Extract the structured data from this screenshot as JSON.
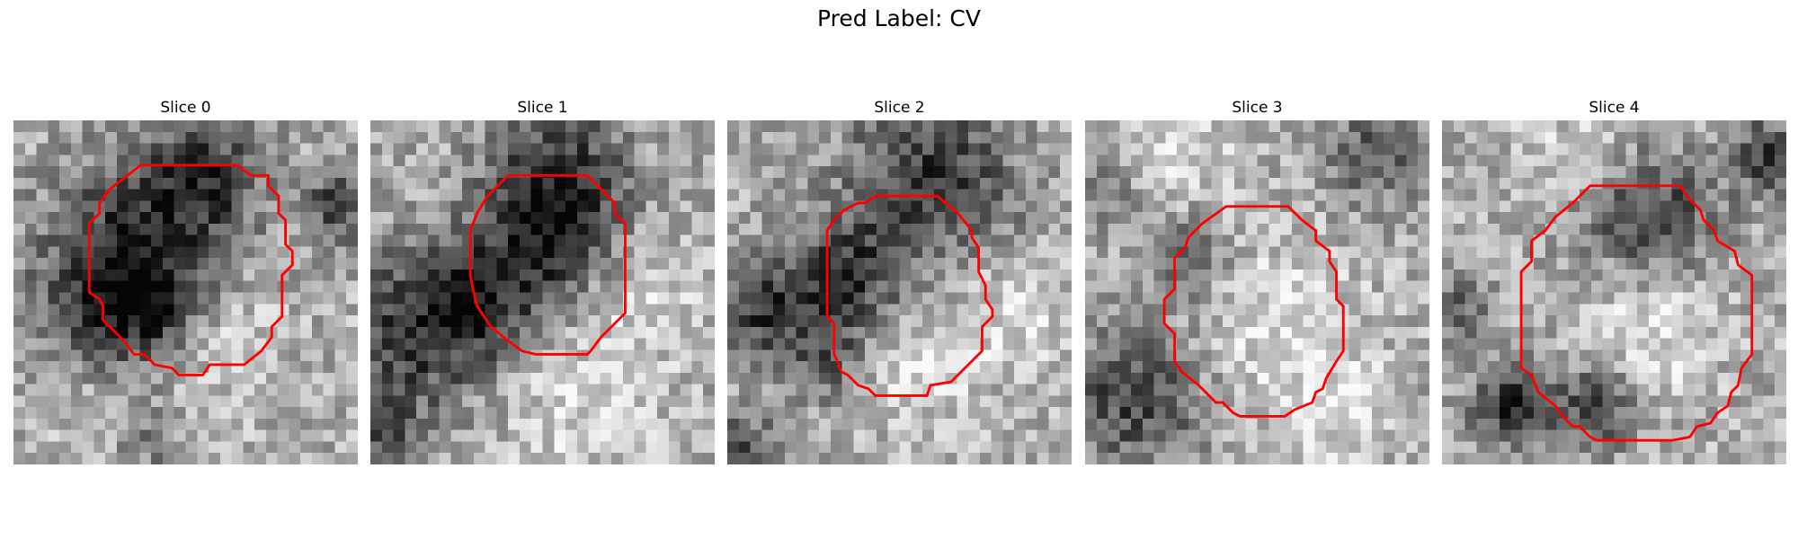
{
  "title": "Pred Label: CV",
  "grid_size": 30,
  "contour_color": "#ff0000",
  "slices": [
    {
      "label": "Slice 0",
      "seed": 11,
      "dark_regions": [
        [
          0.55,
          0.17,
          0.18,
          0.9
        ],
        [
          0.3,
          0.3,
          0.22,
          0.55
        ],
        [
          0.25,
          0.55,
          0.2,
          0.8
        ],
        [
          0.45,
          0.55,
          0.2,
          0.85
        ],
        [
          0.4,
          0.92,
          0.12,
          0.5
        ],
        [
          0.95,
          0.25,
          0.1,
          0.8
        ]
      ],
      "light_regions": [
        [
          0.6,
          0.6,
          0.15,
          0.7
        ],
        [
          0.4,
          0.78,
          0.25,
          0.5
        ]
      ],
      "contour": [
        [
          37,
          13
        ],
        [
          65,
          13
        ],
        [
          69,
          16
        ],
        [
          74,
          16
        ],
        [
          74,
          19
        ],
        [
          77,
          22
        ],
        [
          77,
          27
        ],
        [
          79,
          29
        ],
        [
          79,
          36
        ],
        [
          81,
          38
        ],
        [
          81,
          42
        ],
        [
          78,
          45
        ],
        [
          78,
          57
        ],
        [
          75,
          60
        ],
        [
          75,
          63
        ],
        [
          72,
          67
        ],
        [
          67,
          71
        ],
        [
          57,
          71
        ],
        [
          55,
          74
        ],
        [
          48,
          74
        ],
        [
          46,
          72
        ],
        [
          41,
          71
        ],
        [
          38,
          68
        ],
        [
          35,
          68
        ],
        [
          32,
          64
        ],
        [
          29,
          61
        ],
        [
          26,
          58
        ],
        [
          26,
          54
        ],
        [
          25,
          52
        ],
        [
          22,
          50
        ],
        [
          22,
          30
        ],
        [
          25,
          27
        ],
        [
          25,
          24
        ],
        [
          28,
          20
        ]
      ]
    },
    {
      "label": "Slice 1",
      "seed": 23,
      "dark_regions": [
        [
          0.55,
          0.15,
          0.2,
          0.85
        ],
        [
          0.5,
          0.38,
          0.2,
          0.75
        ],
        [
          0.1,
          0.62,
          0.25,
          0.75
        ],
        [
          0.3,
          0.55,
          0.18,
          0.6
        ],
        [
          0.05,
          0.9,
          0.1,
          0.5
        ]
      ],
      "light_regions": [
        [
          0.6,
          0.8,
          0.25,
          0.5
        ],
        [
          0.8,
          0.5,
          0.15,
          0.5
        ]
      ],
      "contour": [
        [
          40,
          16
        ],
        [
          63,
          16
        ],
        [
          68,
          21
        ],
        [
          71,
          24
        ],
        [
          71,
          27
        ],
        [
          74,
          30
        ],
        [
          74,
          56
        ],
        [
          71,
          59
        ],
        [
          67,
          63
        ],
        [
          64,
          67
        ],
        [
          63,
          68
        ],
        [
          48,
          68
        ],
        [
          44,
          67
        ],
        [
          40,
          64
        ],
        [
          35,
          60
        ],
        [
          33,
          57
        ],
        [
          31,
          54
        ],
        [
          30,
          50
        ],
        [
          29,
          45
        ],
        [
          29,
          32
        ],
        [
          31,
          27
        ],
        [
          34,
          22
        ]
      ]
    },
    {
      "label": "Slice 2",
      "seed": 37,
      "dark_regions": [
        [
          0.6,
          0.15,
          0.25,
          0.8
        ],
        [
          0.35,
          0.45,
          0.18,
          0.8
        ],
        [
          0.1,
          0.55,
          0.15,
          0.8
        ],
        [
          0.3,
          0.7,
          0.12,
          0.5
        ],
        [
          0.05,
          0.95,
          0.1,
          0.6
        ]
      ],
      "light_regions": [
        [
          0.55,
          0.7,
          0.18,
          0.55
        ],
        [
          0.85,
          0.55,
          0.15,
          0.6
        ]
      ],
      "contour": [
        [
          43,
          22
        ],
        [
          61,
          22
        ],
        [
          67,
          27
        ],
        [
          71,
          32
        ],
        [
          71,
          34
        ],
        [
          73,
          37
        ],
        [
          73,
          44
        ],
        [
          75,
          48
        ],
        [
          75,
          52
        ],
        [
          77,
          55
        ],
        [
          77,
          57
        ],
        [
          74,
          60
        ],
        [
          74,
          67
        ],
        [
          69,
          72
        ],
        [
          65,
          76
        ],
        [
          59,
          77
        ],
        [
          58,
          80
        ],
        [
          43,
          80
        ],
        [
          41,
          78
        ],
        [
          38,
          77
        ],
        [
          35,
          74
        ],
        [
          33,
          73
        ],
        [
          32,
          70
        ],
        [
          31,
          68
        ],
        [
          31,
          59
        ],
        [
          29,
          57
        ],
        [
          29,
          45
        ],
        [
          29,
          45
        ],
        [
          29,
          32
        ],
        [
          31,
          29
        ],
        [
          34,
          26
        ],
        [
          38,
          24
        ],
        [
          40,
          24
        ]
      ]
    },
    {
      "label": "Slice 3",
      "seed": 53,
      "dark_regions": [
        [
          0.15,
          0.8,
          0.2,
          0.8
        ],
        [
          0.3,
          0.4,
          0.12,
          0.5
        ],
        [
          0.85,
          0.1,
          0.15,
          0.6
        ],
        [
          0.05,
          0.2,
          0.1,
          0.4
        ]
      ],
      "light_regions": [
        [
          0.55,
          0.6,
          0.25,
          0.55
        ],
        [
          0.75,
          0.85,
          0.15,
          0.5
        ],
        [
          0.25,
          0.05,
          0.18,
          0.5
        ]
      ],
      "contour": [
        [
          41,
          25
        ],
        [
          59,
          25
        ],
        [
          63,
          29
        ],
        [
          67,
          32
        ],
        [
          67,
          35
        ],
        [
          71,
          38
        ],
        [
          71,
          41
        ],
        [
          73,
          44
        ],
        [
          73,
          52
        ],
        [
          75,
          54
        ],
        [
          75,
          57
        ],
        [
          75,
          67
        ],
        [
          73,
          70
        ],
        [
          70,
          75
        ],
        [
          69,
          78
        ],
        [
          67,
          79
        ],
        [
          66,
          82
        ],
        [
          61,
          84
        ],
        [
          58,
          86
        ],
        [
          45,
          86
        ],
        [
          43,
          85
        ],
        [
          40,
          82
        ],
        [
          38,
          82
        ],
        [
          33,
          77
        ],
        [
          28,
          73
        ],
        [
          26,
          70
        ],
        [
          26,
          62
        ],
        [
          23,
          59
        ],
        [
          23,
          52
        ],
        [
          26,
          49
        ],
        [
          26,
          40
        ],
        [
          29,
          37
        ],
        [
          30,
          34
        ],
        [
          34,
          30
        ]
      ]
    },
    {
      "label": "Slice 4",
      "seed": 71,
      "dark_regions": [
        [
          0.6,
          0.28,
          0.2,
          0.8
        ],
        [
          0.95,
          0.1,
          0.1,
          0.9
        ],
        [
          0.2,
          0.82,
          0.12,
          0.9
        ],
        [
          0.45,
          0.83,
          0.12,
          0.8
        ],
        [
          0.05,
          0.55,
          0.1,
          0.5
        ]
      ],
      "light_regions": [
        [
          0.6,
          0.6,
          0.2,
          0.65
        ],
        [
          0.4,
          0.1,
          0.2,
          0.4
        ]
      ],
      "contour": [
        [
          43,
          19
        ],
        [
          69,
          19
        ],
        [
          72,
          23
        ],
        [
          75,
          26
        ],
        [
          76,
          29
        ],
        [
          79,
          32
        ],
        [
          80,
          35
        ],
        [
          85,
          38
        ],
        [
          86,
          42
        ],
        [
          90,
          45
        ],
        [
          90,
          68
        ],
        [
          87,
          72
        ],
        [
          86,
          77
        ],
        [
          84,
          79
        ],
        [
          83,
          83
        ],
        [
          80,
          85
        ],
        [
          78,
          88
        ],
        [
          74,
          89
        ],
        [
          72,
          92
        ],
        [
          67,
          93
        ],
        [
          64,
          93
        ],
        [
          45,
          93
        ],
        [
          43,
          92
        ],
        [
          40,
          89
        ],
        [
          38,
          89
        ],
        [
          35,
          86
        ],
        [
          33,
          83
        ],
        [
          28,
          79
        ],
        [
          26,
          74
        ],
        [
          23,
          72
        ],
        [
          23,
          44
        ],
        [
          26,
          41
        ],
        [
          26,
          35
        ],
        [
          30,
          32
        ],
        [
          33,
          28
        ],
        [
          38,
          24
        ]
      ]
    }
  ]
}
